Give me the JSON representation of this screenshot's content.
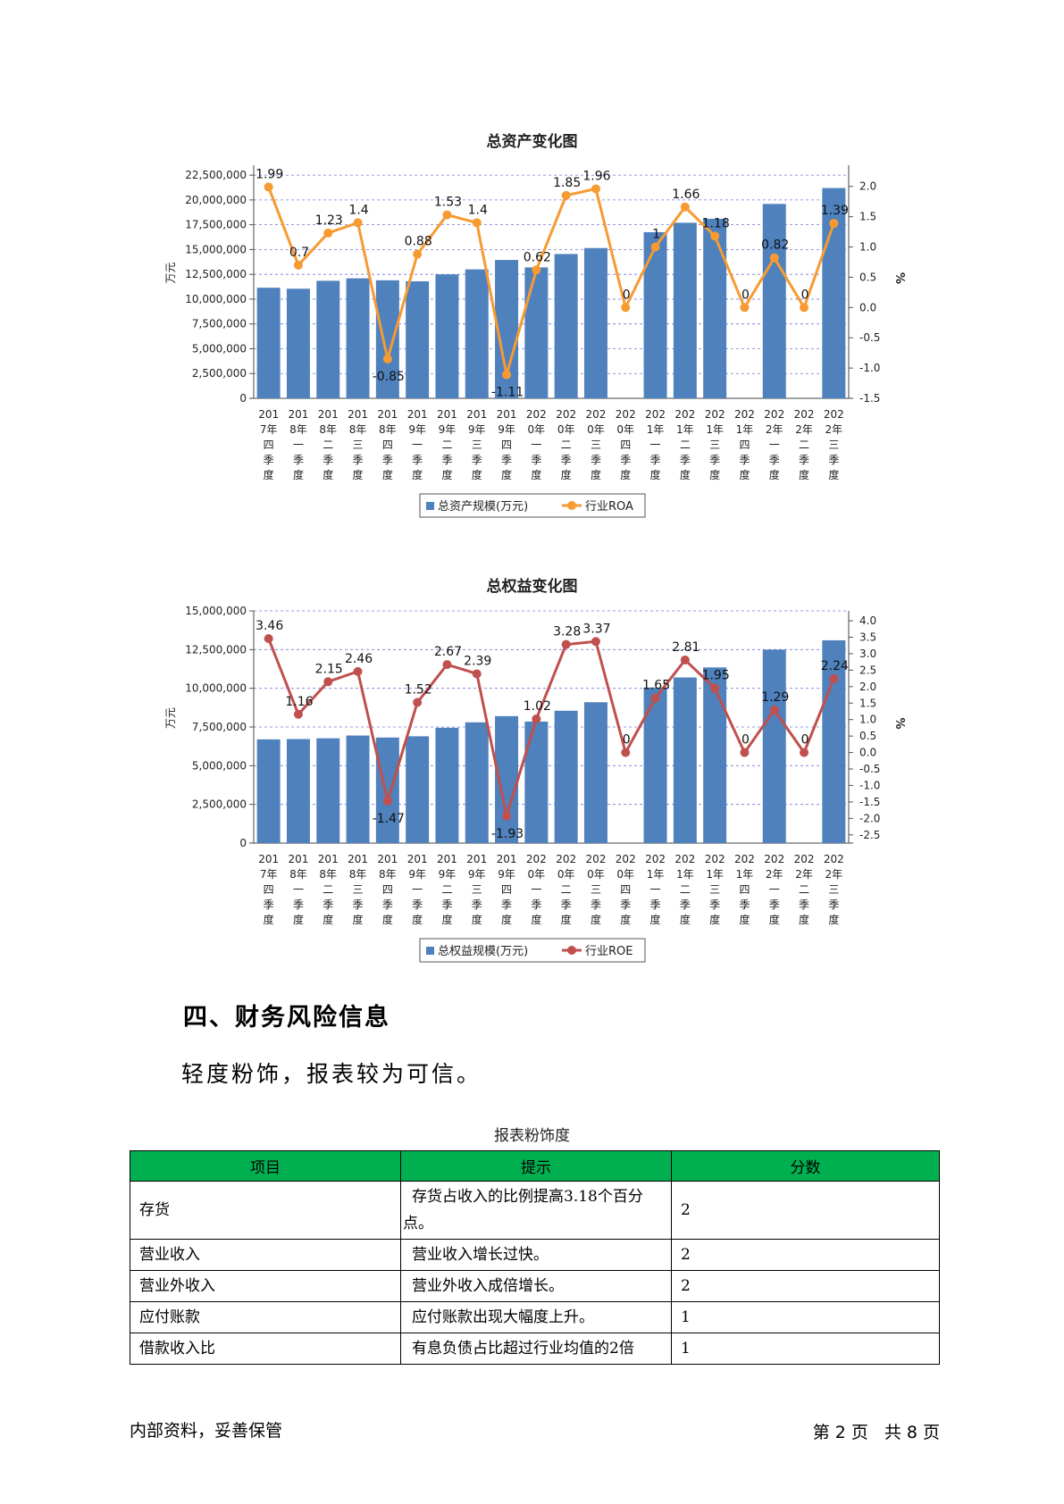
{
  "quarters": [
    [
      "201",
      "7年",
      "四",
      "季",
      "度"
    ],
    [
      "201",
      "8年",
      "一",
      "季",
      "度"
    ],
    [
      "201",
      "8年",
      "二",
      "季",
      "度"
    ],
    [
      "201",
      "8年",
      "三",
      "季",
      "度"
    ],
    [
      "201",
      "8年",
      "四",
      "季",
      "度"
    ],
    [
      "201",
      "9年",
      "一",
      "季",
      "度"
    ],
    [
      "201",
      "9年",
      "二",
      "季",
      "度"
    ],
    [
      "201",
      "9年",
      "三",
      "季",
      "度"
    ],
    [
      "201",
      "9年",
      "四",
      "季",
      "度"
    ],
    [
      "202",
      "0年",
      "一",
      "季",
      "度"
    ],
    [
      "202",
      "0年",
      "二",
      "季",
      "度"
    ],
    [
      "202",
      "0年",
      "三",
      "季",
      "度"
    ],
    [
      "202",
      "0年",
      "四",
      "季",
      "度"
    ],
    [
      "202",
      "1年",
      "一",
      "季",
      "度"
    ],
    [
      "202",
      "1年",
      "二",
      "季",
      "度"
    ],
    [
      "202",
      "1年",
      "三",
      "季",
      "度"
    ],
    [
      "202",
      "1年",
      "四",
      "季",
      "度"
    ],
    [
      "202",
      "2年",
      "一",
      "季",
      "度"
    ],
    [
      "202",
      "2年",
      "二",
      "季",
      "度"
    ],
    [
      "202",
      "2年",
      "三",
      "季",
      "度"
    ]
  ],
  "chart_data": [
    {
      "type": "bar+line",
      "title": "总资产变化图",
      "ylabel_left": "万元",
      "ylabel_right": "%",
      "left_ticks": [
        "0",
        "2,500,000",
        "5,000,000",
        "7,500,000",
        "10,000,000",
        "12,500,000",
        "15,000,000",
        "17,500,000",
        "20,000,000",
        "22,500,000"
      ],
      "ylim_left": [
        0,
        23500000
      ],
      "right_ticks": [
        "-1.5",
        "-1.0",
        "-0.5",
        "0.0",
        "0.5",
        "1.0",
        "1.5",
        "2.0"
      ],
      "ylim_right": [
        -1.5,
        2.35
      ],
      "bar_series": {
        "name": "总资产规模(万元)",
        "color": "#4f81bd",
        "values": [
          11150000,
          11050000,
          11850000,
          12100000,
          11900000,
          11800000,
          12500000,
          13000000,
          13950000,
          13200000,
          14550000,
          15150000,
          null,
          16750000,
          17700000,
          18100000,
          null,
          19600000,
          null,
          21200000
        ]
      },
      "line_series": {
        "name": "行业ROA",
        "color": "#f79a31",
        "values": [
          1.99,
          0.7,
          1.23,
          1.4,
          -0.85,
          0.88,
          1.53,
          1.4,
          -1.11,
          0.62,
          1.85,
          1.96,
          0,
          1,
          1.66,
          1.18,
          0,
          0.82,
          0,
          1.39
        ],
        "labels": [
          "1.99",
          "0.7",
          "1.23",
          "1.4",
          "-0.85",
          "0.88",
          "1.53",
          "1.4",
          "-1.11",
          "0.62",
          "1.85",
          "1.96",
          "0",
          "1",
          "1.66",
          "1.18",
          "0",
          "0.82",
          "0",
          "1.39"
        ]
      },
      "grid": true,
      "legend": "bottom"
    },
    {
      "type": "bar+line",
      "title": "总权益变化图",
      "ylabel_left": "万元",
      "ylabel_right": "%",
      "left_ticks": [
        "0",
        "2,500,000",
        "5,000,000",
        "7,500,000",
        "10,000,000",
        "12,500,000",
        "15,000,000"
      ],
      "ylim_left": [
        0,
        15000000
      ],
      "right_ticks": [
        "-2.5",
        "-2.0",
        "-1.5",
        "-1.0",
        "-0.5",
        "0.0",
        "0.5",
        "1.0",
        "1.5",
        "2.0",
        "2.5",
        "3.0",
        "3.5",
        "4.0"
      ],
      "ylim_right": [
        -2.75,
        4.3
      ],
      "bar_series": {
        "name": "总权益规模(万元)",
        "color": "#4f81bd",
        "values": [
          6700000,
          6720000,
          6770000,
          6950000,
          6820000,
          6900000,
          7450000,
          7800000,
          8200000,
          7850000,
          8550000,
          9100000,
          null,
          10050000,
          10700000,
          11350000,
          null,
          12500000,
          null,
          13100000
        ]
      },
      "line_series": {
        "name": "行业ROE",
        "color": "#c0504d",
        "values": [
          3.46,
          1.16,
          2.15,
          2.46,
          -1.47,
          1.52,
          2.67,
          2.39,
          -1.93,
          1.02,
          3.28,
          3.37,
          0,
          1.65,
          2.81,
          1.95,
          0,
          1.29,
          0,
          2.24
        ],
        "labels": [
          "3.46",
          "1.16",
          "2.15",
          "2.46",
          "-1.47",
          "1.52",
          "2.67",
          "2.39",
          "-1.93",
          "1.02",
          "3.28",
          "3.37",
          "0",
          "1.65",
          "2.81",
          "1.95",
          "0",
          "1.29",
          "0",
          "2.24"
        ]
      },
      "grid": true,
      "legend": "bottom"
    }
  ],
  "section": {
    "heading": "四、财务风险信息",
    "body": "轻度粉饰，报表较为可信。"
  },
  "table": {
    "caption": "报表粉饰度",
    "headers": [
      "项目",
      "提示",
      "分数"
    ],
    "rows": [
      {
        "item": "存货",
        "hint": "存货占收入的比例提高3.18个百分点。",
        "score": "2"
      },
      {
        "item": "营业收入",
        "hint": "营业收入增长过快。",
        "score": "2"
      },
      {
        "item": "营业外收入",
        "hint": "营业外收入成倍增长。",
        "score": "2"
      },
      {
        "item": "应付账款",
        "hint": "应付账款出现大幅度上升。",
        "score": "1"
      },
      {
        "item": "借款收入比",
        "hint": "有息负债占比超过行业均值的2倍",
        "score": "1"
      }
    ]
  },
  "footer": {
    "left": "内部资料，妥善保管",
    "page_prefix": "第",
    "page_num": "2",
    "page_mid": "页",
    "total_prefix": "共",
    "total_num": "8",
    "total_suffix": "页"
  }
}
